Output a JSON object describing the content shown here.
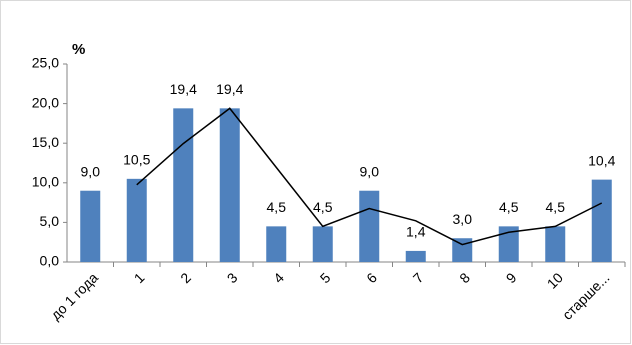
{
  "chart_data": {
    "type": "bar",
    "y_label": "%",
    "categories": [
      "до 1 года",
      "1",
      "2",
      "3",
      "4",
      "5",
      "6",
      "7",
      "8",
      "9",
      "10",
      "старше..."
    ],
    "series": [
      {
        "type": "bar",
        "color": "#4f81bd",
        "values": [
          9.0,
          10.5,
          19.4,
          19.4,
          4.5,
          4.5,
          9.0,
          1.4,
          3.0,
          4.5,
          4.5,
          10.4
        ],
        "value_labels": [
          "9,0",
          "10,5",
          "19,4",
          "19,4",
          "4,5",
          "4,5",
          "9,0",
          "1,4",
          "3,0",
          "4,5",
          "4,5",
          "10,4"
        ]
      },
      {
        "type": "line",
        "color": "#000000",
        "values": [
          null,
          9.75,
          14.95,
          19.4,
          11.95,
          4.5,
          6.75,
          5.2,
          2.2,
          3.75,
          4.5,
          7.45
        ]
      }
    ],
    "ylim": [
      0,
      25
    ],
    "yticks": [
      {
        "value": 0,
        "label": "0,0"
      },
      {
        "value": 5,
        "label": "5,0"
      },
      {
        "value": 10,
        "label": "10,0"
      },
      {
        "value": 15,
        "label": "15,0"
      },
      {
        "value": 20,
        "label": "20,0"
      },
      {
        "value": 25,
        "label": "25,0"
      }
    ],
    "grid": false
  }
}
